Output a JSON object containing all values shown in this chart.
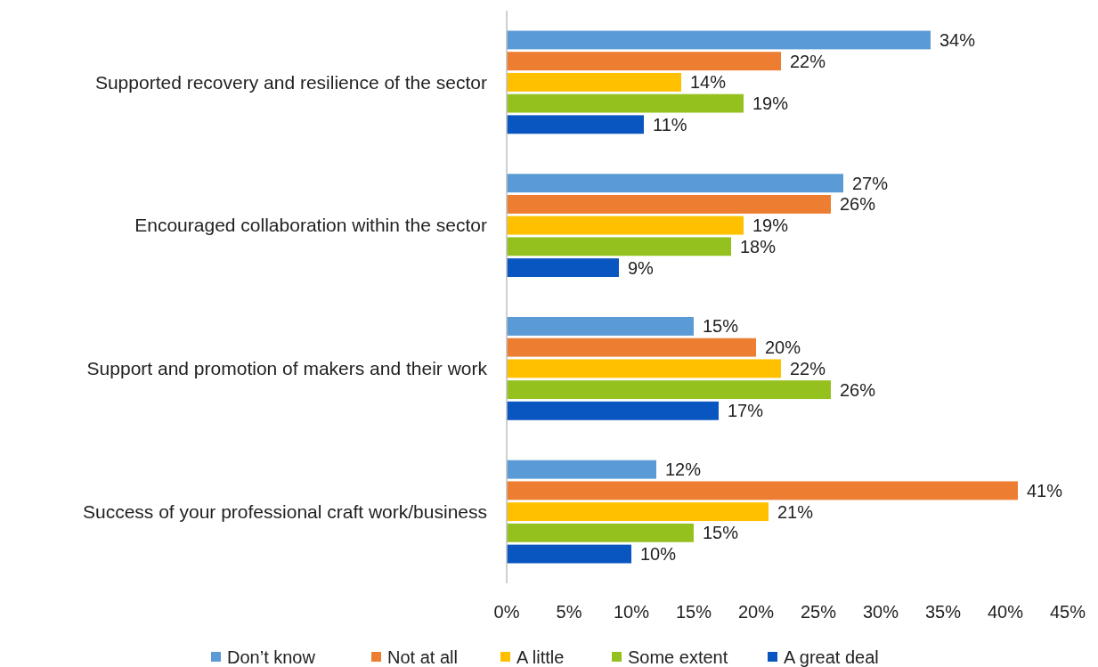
{
  "chart_data": {
    "type": "bar",
    "orientation": "horizontal",
    "categories": [
      "Supported recovery and resilience of the sector",
      "Encouraged collaboration within the sector",
      "Support and promotion of makers and their work",
      "Success of your professional craft work/business"
    ],
    "series": [
      {
        "name": "Don’t know",
        "color": "#5b9bd5",
        "values": [
          34,
          27,
          15,
          12
        ],
        "value_labels": [
          "34%",
          "27%",
          "15%",
          "12%"
        ]
      },
      {
        "name": "Not at all",
        "color": "#ed7d31",
        "values": [
          22,
          26,
          20,
          41
        ],
        "value_labels": [
          "22%",
          "26%",
          "20%",
          "41%"
        ]
      },
      {
        "name": "A little",
        "color": "#ffc000",
        "values": [
          14,
          19,
          22,
          21
        ],
        "value_labels": [
          "14%",
          "19%",
          "22%",
          "21%"
        ]
      },
      {
        "name": "Some extent",
        "color": "#95c11f",
        "values": [
          19,
          18,
          26,
          15
        ],
        "value_labels": [
          "19%",
          "18%",
          "26%",
          "15%"
        ]
      },
      {
        "name": "A great deal",
        "color": "#0a56c0",
        "values": [
          11,
          9,
          17,
          10
        ],
        "value_labels": [
          "11%",
          "9%",
          "17%",
          "10%"
        ]
      }
    ],
    "xlim": [
      0,
      45
    ],
    "xticks": [
      {
        "value": 0,
        "label": "0%"
      },
      {
        "value": 5,
        "label": "5%"
      },
      {
        "value": 10,
        "label": "10%"
      },
      {
        "value": 15,
        "label": "15%"
      },
      {
        "value": 20,
        "label": "20%"
      },
      {
        "value": 25,
        "label": "25%"
      },
      {
        "value": 30,
        "label": "30%"
      },
      {
        "value": 35,
        "label": "35%"
      },
      {
        "value": 40,
        "label": "40%"
      },
      {
        "value": 45,
        "label": "45%"
      }
    ],
    "grid": false,
    "legend": "bottom"
  }
}
